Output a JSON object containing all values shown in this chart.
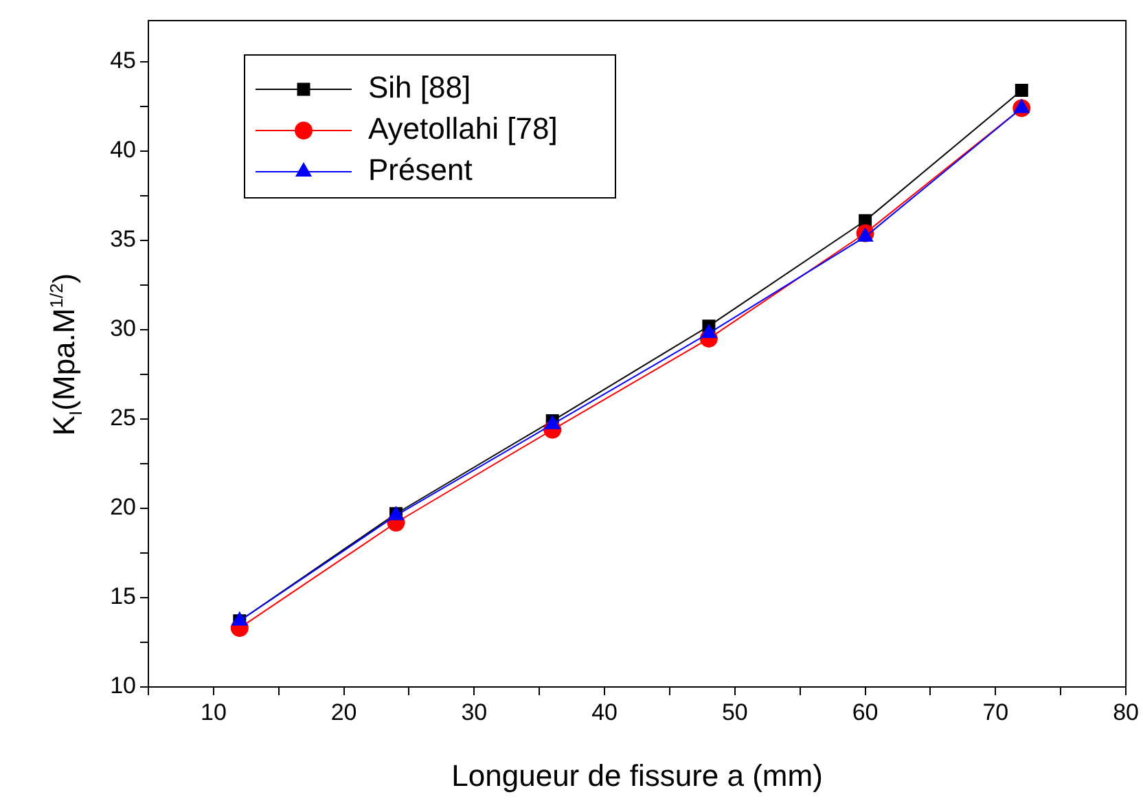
{
  "chart_data": {
    "type": "line",
    "xlabel": "Longueur de fissure a (mm)",
    "ylabel": "K$_{I}$(Mpa.M$^{1/2}$)",
    "x": [
      12,
      24,
      36,
      48,
      60,
      72
    ],
    "series": [
      {
        "name": "Sih [88]",
        "color": "#000000",
        "marker": "square",
        "values": [
          13.7,
          19.7,
          24.9,
          30.2,
          36.1,
          43.4
        ]
      },
      {
        "name": "Ayetollahi [78]",
        "color": "#ff0000",
        "marker": "circle",
        "values": [
          13.3,
          19.2,
          24.4,
          29.5,
          35.4,
          42.4
        ]
      },
      {
        "name": "Présent",
        "color": "#0000ff",
        "marker": "triangle",
        "values": [
          13.7,
          19.6,
          24.7,
          29.8,
          35.2,
          42.4
        ]
      }
    ],
    "xlim": [
      5,
      80
    ],
    "xticks": [
      {
        "value": 5,
        "label": null
      },
      10,
      {
        "value": 15,
        "label": null
      },
      20,
      {
        "value": 25,
        "label": null
      },
      30,
      {
        "value": 35,
        "label": null
      },
      40,
      {
        "value": 45,
        "label": null
      },
      50,
      {
        "value": 55,
        "label": null
      },
      60,
      {
        "value": 65,
        "label": null
      },
      70,
      {
        "value": 75,
        "label": null
      },
      80
    ],
    "ylim": [
      10,
      47.3
    ],
    "yticks": [
      10,
      {
        "value": 12.5,
        "label": null
      },
      15,
      {
        "value": 17.5,
        "label": null
      },
      20,
      {
        "value": 22.5,
        "label": null
      },
      25,
      {
        "value": 27.5,
        "label": null
      },
      30,
      {
        "value": 32.5,
        "label": null
      },
      35,
      {
        "value": 37.5,
        "label": null
      },
      40,
      {
        "value": 42.5,
        "label": null
      },
      45
    ],
    "grid": false,
    "legend": "top left",
    "line_style": "solid"
  }
}
